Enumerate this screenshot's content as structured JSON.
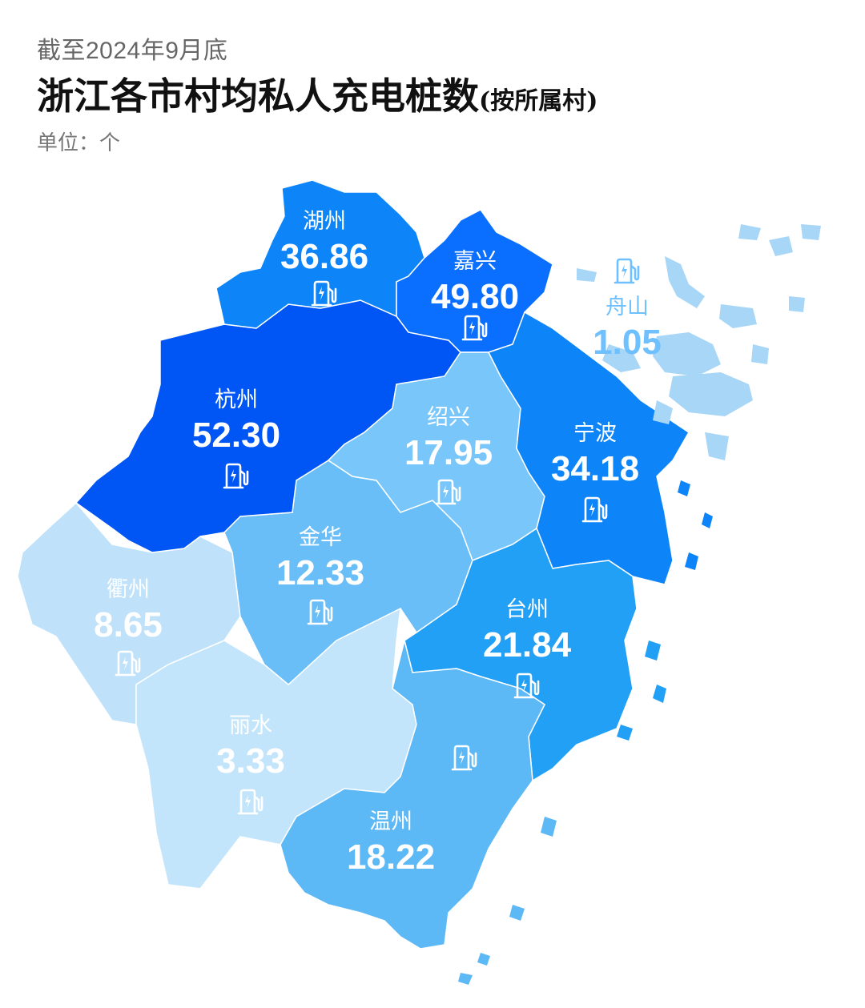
{
  "header": {
    "subtitle": "截至2024年9月底",
    "title_main": "浙江各市村均私人充电桩数",
    "title_suffix": "(按所属村)",
    "unit": "单位：个"
  },
  "colors": {
    "level_1": "#0055f5",
    "level_2": "#0a6fff",
    "level_3": "#0d85f8",
    "level_4": "#22a0f6",
    "level_5": "#69bef7",
    "level_6": "#78c6fa",
    "level_7": "#a7d6f7",
    "level_8": "#bfe2fa",
    "light_text": "#6fc0ff",
    "white_text": "#ffffff"
  },
  "regions": [
    {
      "id": "huzhou",
      "name": "湖州",
      "value": "36.86",
      "icon": "charging-station-icon"
    },
    {
      "id": "jiaxing",
      "name": "嘉兴",
      "value": "49.80",
      "icon": "charging-station-icon"
    },
    {
      "id": "zhoushan",
      "name": "舟山",
      "value": "1.05",
      "icon": "charging-station-icon"
    },
    {
      "id": "hangzhou",
      "name": "杭州",
      "value": "52.30",
      "icon": "charging-station-icon"
    },
    {
      "id": "shaoxing",
      "name": "绍兴",
      "value": "17.95",
      "icon": "charging-station-icon"
    },
    {
      "id": "ningbo",
      "name": "宁波",
      "value": "34.18",
      "icon": "charging-station-icon"
    },
    {
      "id": "jinhua",
      "name": "金华",
      "value": "12.33",
      "icon": "charging-station-icon"
    },
    {
      "id": "quzhou",
      "name": "衢州",
      "value": "8.65",
      "icon": "charging-station-icon"
    },
    {
      "id": "taizhou",
      "name": "台州",
      "value": "21.84",
      "icon": "charging-station-icon"
    },
    {
      "id": "lishui",
      "name": "丽水",
      "value": "3.33",
      "icon": "charging-station-icon"
    },
    {
      "id": "wenzhou",
      "name": "温州",
      "value": "18.22",
      "icon": "charging-station-icon"
    }
  ]
}
